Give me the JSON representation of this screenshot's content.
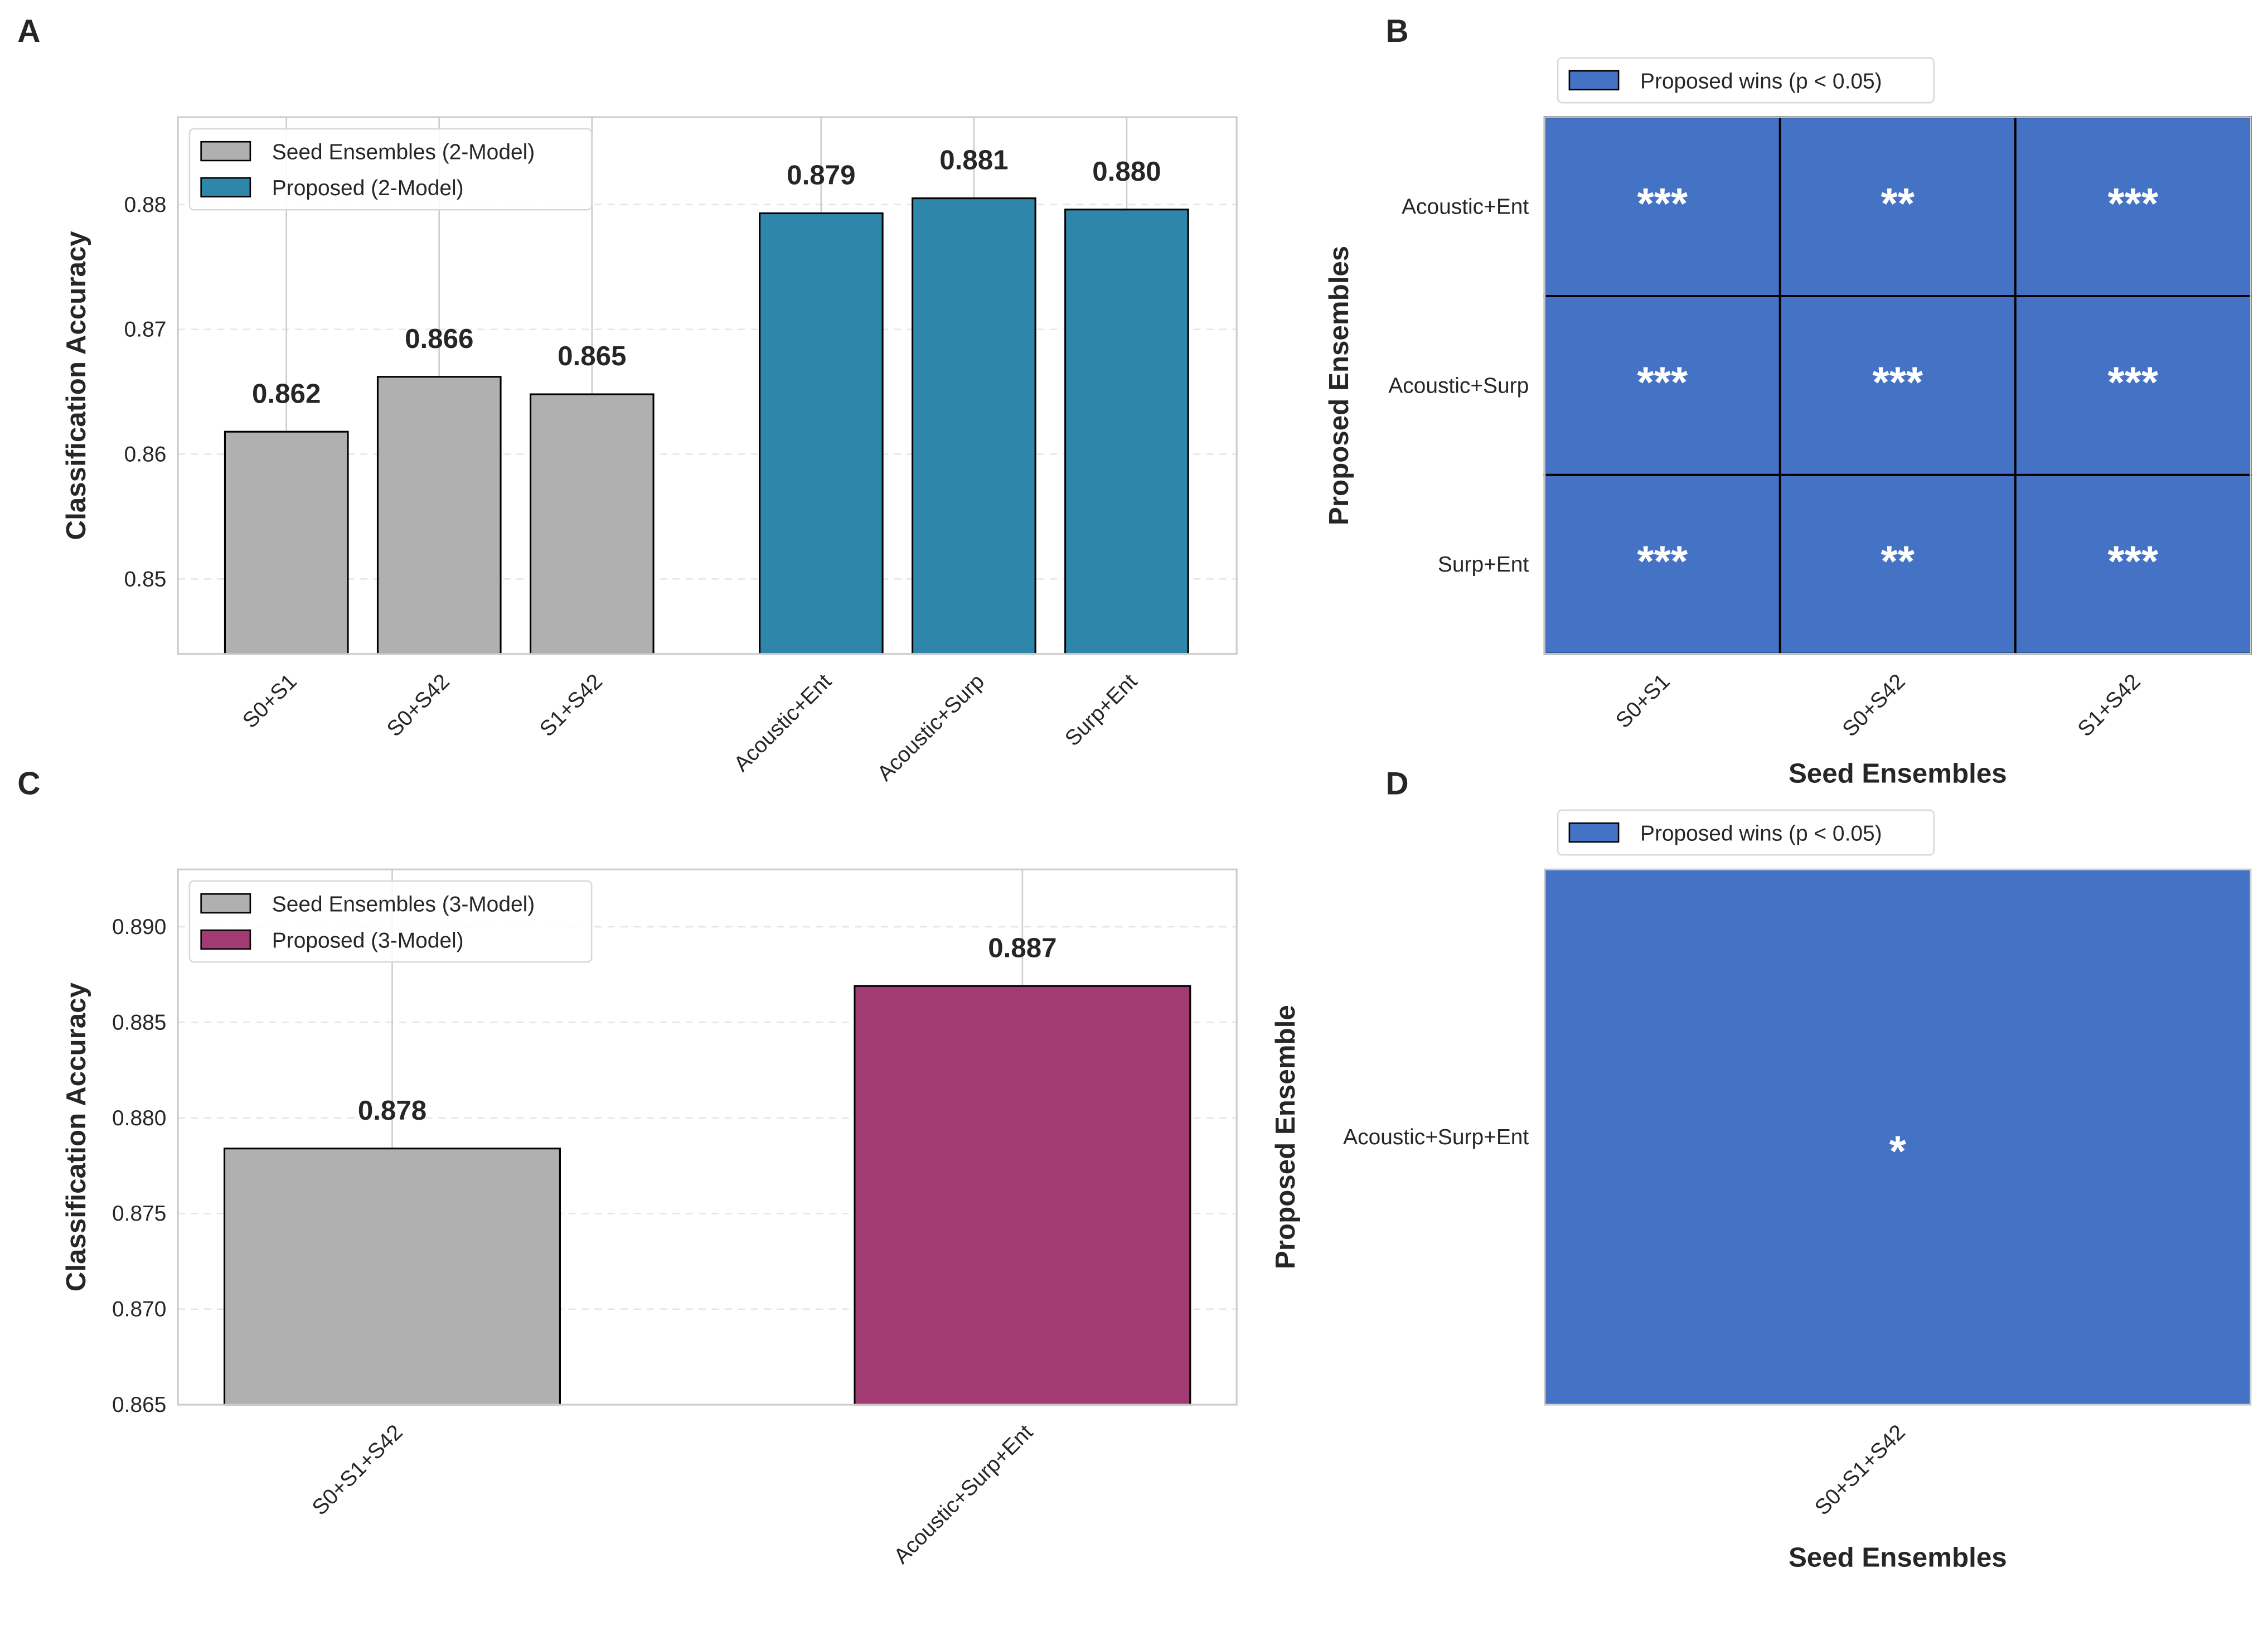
{
  "panel_letters": {
    "a": "A",
    "b": "B",
    "c": "C",
    "d": "D"
  },
  "chart_data": [
    {
      "panel": "A",
      "type": "bar",
      "categories": [
        "S0+S1",
        "S0+S42",
        "S1+S42",
        "Acoustic+Ent",
        "Acoustic+Surp",
        "Surp+Ent"
      ],
      "values": [
        0.8618,
        0.8662,
        0.8648,
        0.8793,
        0.8805,
        0.8796
      ],
      "labels": [
        "0.862",
        "0.866",
        "0.865",
        "0.879",
        "0.881",
        "0.880"
      ],
      "groups": [
        "seed",
        "seed",
        "seed",
        "proposed",
        "proposed",
        "proposed"
      ],
      "colors": {
        "seed": "#b0b0b0",
        "proposed": "#2e86ab"
      },
      "legend": [
        {
          "group": "seed",
          "name": "Seed Ensembles (2-Model)"
        },
        {
          "group": "proposed",
          "name": "Proposed (2-Model)"
        }
      ],
      "legend_position": "top-left",
      "ylabel": "Classification Accuracy",
      "xlabel": "",
      "ylim": [
        0.844,
        0.887
      ],
      "yticks": [
        "0.85",
        "0.86",
        "0.87",
        "0.88"
      ],
      "grid": true
    },
    {
      "panel": "B",
      "type": "heatmap",
      "rows": [
        "Acoustic+Ent",
        "Acoustic+Surp",
        "Surp+Ent"
      ],
      "cols": [
        "S0+S1",
        "S0+S42",
        "S1+S42"
      ],
      "cells": [
        [
          "***",
          "**",
          "***"
        ],
        [
          "***",
          "***",
          "***"
        ],
        [
          "***",
          "**",
          "***"
        ]
      ],
      "color": "#4472c4",
      "legend": "Proposed wins (p < 0.05)",
      "legend_position": "top",
      "xlabel": "Seed Ensembles",
      "ylabel": "Proposed Ensembles"
    },
    {
      "panel": "C",
      "type": "bar",
      "categories": [
        "S0+S1+S42",
        "Acoustic+Surp+Ent"
      ],
      "values": [
        0.8784,
        0.8869
      ],
      "labels": [
        "0.878",
        "0.887"
      ],
      "groups": [
        "seed",
        "proposed"
      ],
      "colors": {
        "seed": "#b0b0b0",
        "proposed": "#a23b72"
      },
      "legend": [
        {
          "group": "seed",
          "name": "Seed Ensembles (3-Model)"
        },
        {
          "group": "proposed",
          "name": "Proposed (3-Model)"
        }
      ],
      "legend_position": "top-left",
      "ylabel": "Classification Accuracy",
      "xlabel": "",
      "ylim": [
        0.865,
        0.893
      ],
      "yticks": [
        "0.865",
        "0.870",
        "0.875",
        "0.880",
        "0.885",
        "0.890"
      ],
      "grid": true
    },
    {
      "panel": "D",
      "type": "heatmap",
      "rows": [
        "Acoustic+Surp+Ent"
      ],
      "cols": [
        "S0+S1+S42"
      ],
      "cells": [
        [
          "*"
        ]
      ],
      "color": "#4472c4",
      "legend": "Proposed wins (p < 0.05)",
      "legend_position": "top",
      "xlabel": "Seed Ensembles",
      "ylabel": "Proposed Ensemble"
    }
  ]
}
